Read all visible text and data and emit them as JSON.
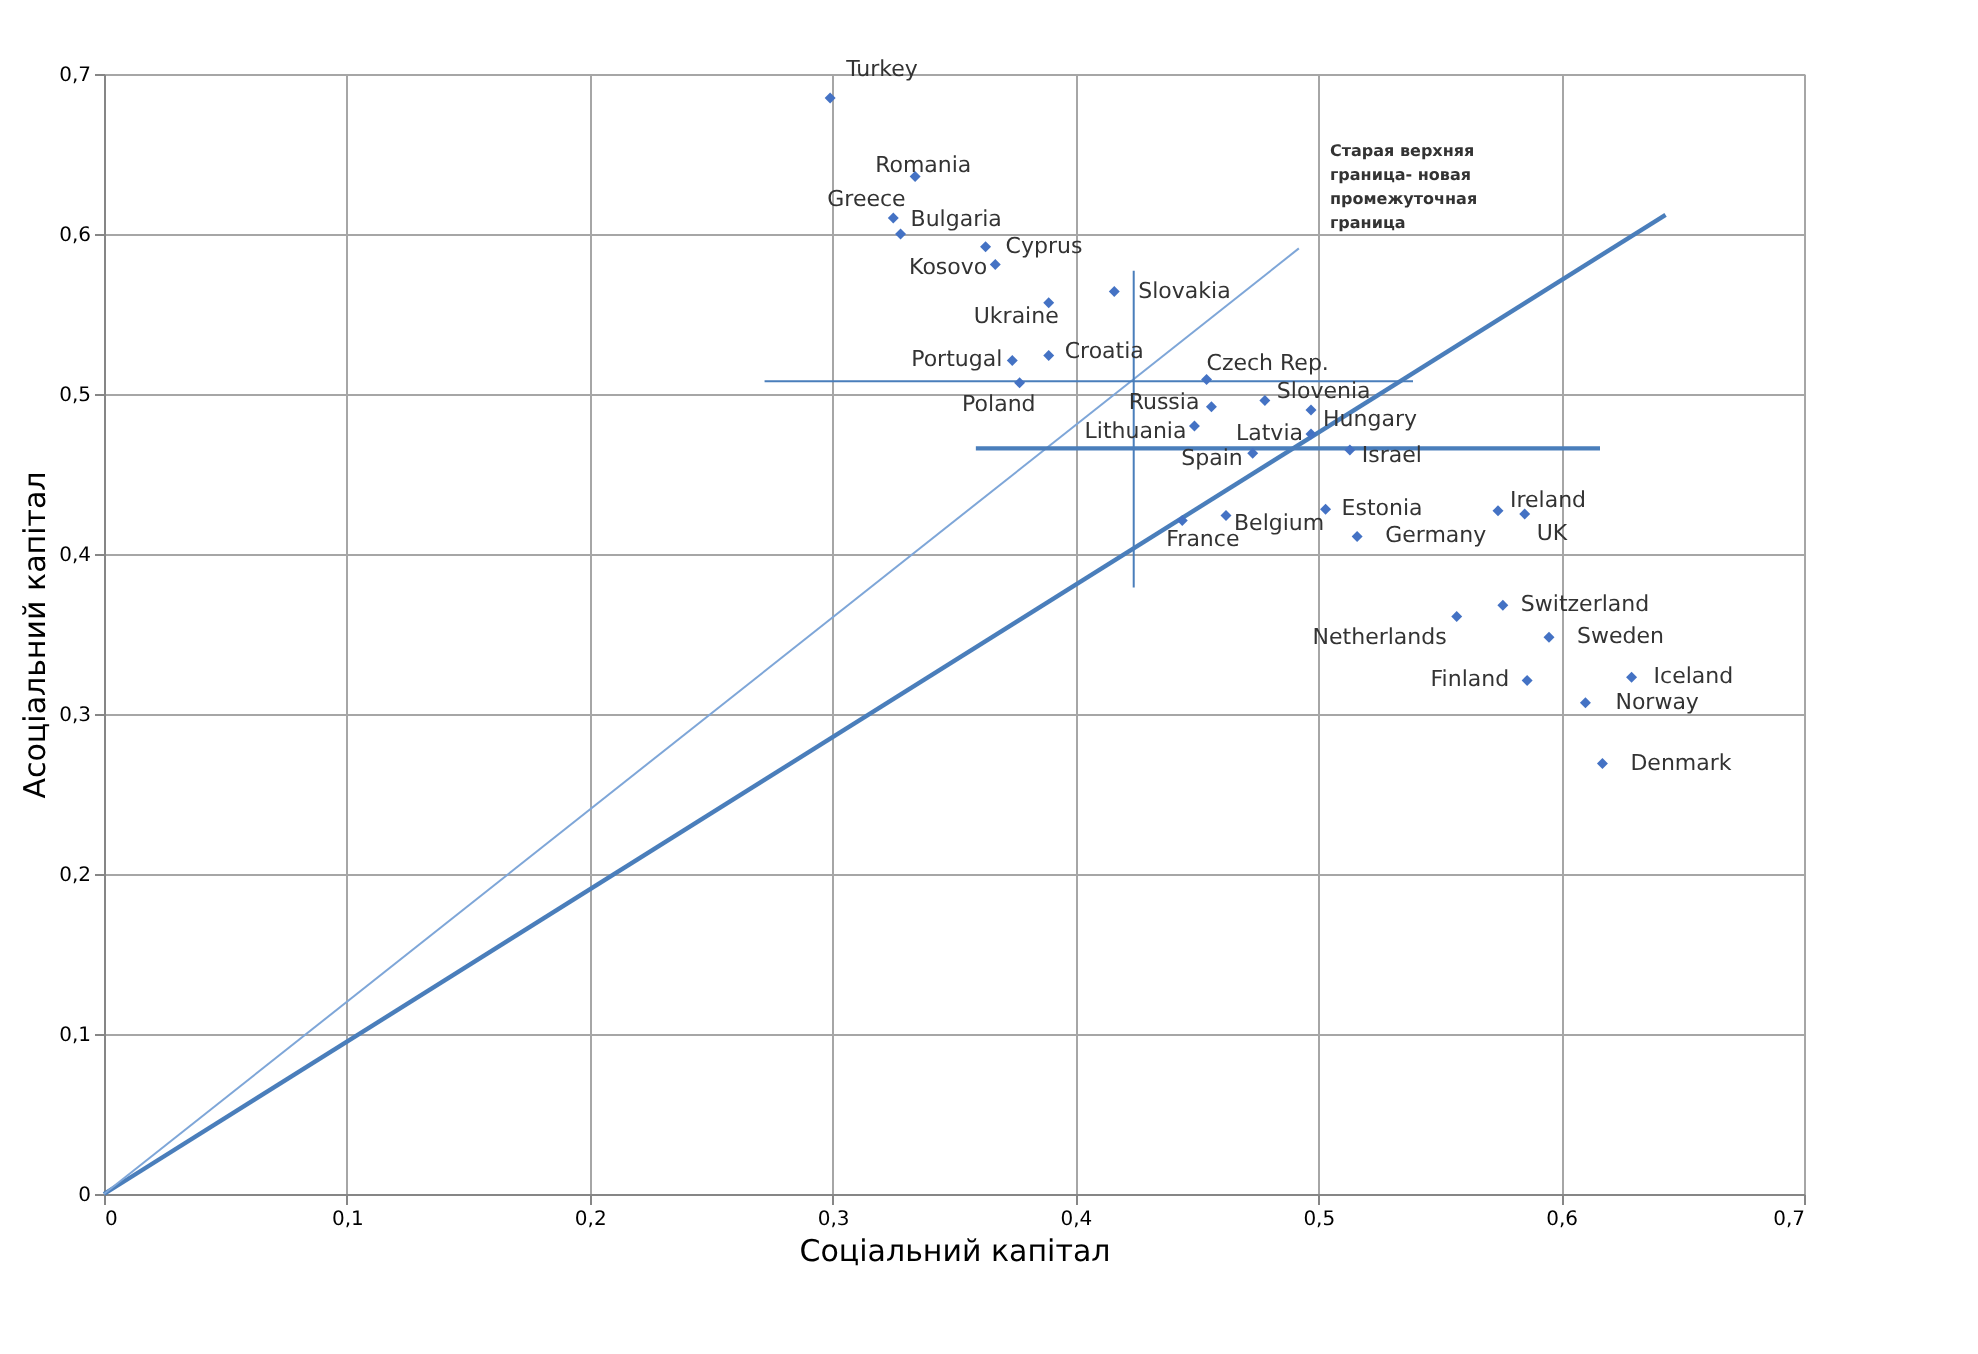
{
  "chart_data": {
    "type": "scatter",
    "xlabel": "Соціальний капітал",
    "ylabel": "Асоціальний капітал",
    "xlim": [
      0,
      0.7
    ],
    "ylim": [
      0,
      0.7
    ],
    "xticks": [
      0,
      {
        "value": 0.1,
        "label": "0,1"
      },
      {
        "value": 0.2,
        "label": "0,2"
      },
      {
        "value": 0.3,
        "label": "0,3"
      },
      {
        "value": 0.4,
        "label": "0,4"
      },
      {
        "value": 0.5,
        "label": "0,5"
      },
      {
        "value": 0.6,
        "label": "0,6"
      },
      {
        "value": 0.7,
        "label": "0,7"
      }
    ],
    "yticks": [
      0,
      {
        "value": 0.1,
        "label": "0,1"
      },
      {
        "value": 0.2,
        "label": "0,2"
      },
      {
        "value": 0.3,
        "label": "0,3"
      },
      {
        "value": 0.4,
        "label": "0,4"
      },
      {
        "value": 0.5,
        "label": "0,5"
      },
      {
        "value": 0.6,
        "label": "0,6"
      },
      {
        "value": 0.7,
        "label": "0,7"
      }
    ],
    "grid": true,
    "marker": "diamond",
    "series": [
      {
        "color": "#4472c4",
        "x": [
          0.299,
          0.334,
          0.325,
          0.328,
          0.363,
          0.367,
          0.389,
          0.416,
          0.374,
          0.389,
          0.377,
          0.454,
          0.456,
          0.478,
          0.497,
          0.449,
          0.497,
          0.473,
          0.513,
          0.574,
          0.585,
          0.503,
          0.462,
          0.444,
          0.516,
          0.576,
          0.557,
          0.595,
          0.629,
          0.586,
          0.61,
          0.617
        ],
        "values": [
          0.685,
          0.636,
          0.61,
          0.6,
          0.592,
          0.581,
          0.557,
          0.564,
          0.521,
          0.524,
          0.507,
          0.509,
          0.492,
          0.496,
          0.49,
          0.48,
          0.475,
          0.463,
          0.465,
          0.427,
          0.425,
          0.428,
          0.424,
          0.421,
          0.411,
          0.368,
          0.361,
          0.348,
          0.323,
          0.321,
          0.307,
          0.269
        ]
      },
      {
        "type": "line",
        "marker": "none",
        "color": "#4a7ebb",
        "line_style": "solid",
        "x": [
          0,
          0.643
        ],
        "values": [
          0,
          0.612
        ]
      },
      {
        "type": "line",
        "marker": "none",
        "color": "#7ea6d8",
        "line_style": "solid",
        "x": [
          0,
          0.492
        ],
        "values": [
          0,
          0.591
        ]
      },
      {
        "type": "line",
        "marker": "none",
        "color": "#4a7ebb",
        "line_style": "solid",
        "x": [
          0.272,
          0.539
        ],
        "values": [
          0.508,
          0.508
        ]
      },
      {
        "type": "line",
        "marker": "none",
        "color": "#4a7ebb",
        "line_style": "solid",
        "x": [
          0.359,
          0.616
        ],
        "values": [
          0.466,
          0.466
        ]
      },
      {
        "type": "line",
        "marker": "none",
        "color": "#4a7ebb",
        "line_style": "solid",
        "x": [
          0.424,
          0.424
        ],
        "values": [
          0.379,
          0.577
        ]
      }
    ],
    "annotations": [
      {
        "text": "Turkey",
        "x": 0.299,
        "y": 0.685
      },
      {
        "text": "Romania",
        "x": 0.334,
        "y": 0.636
      },
      {
        "text": "Greece",
        "x": 0.325,
        "y": 0.61
      },
      {
        "text": "Bulgaria",
        "x": 0.328,
        "y": 0.6
      },
      {
        "text": "Cyprus",
        "x": 0.363,
        "y": 0.592
      },
      {
        "text": "Kosovo",
        "x": 0.367,
        "y": 0.581
      },
      {
        "text": "Ukraine",
        "x": 0.389,
        "y": 0.557
      },
      {
        "text": "Slovakia",
        "x": 0.416,
        "y": 0.564
      },
      {
        "text": "Portugal",
        "x": 0.374,
        "y": 0.521
      },
      {
        "text": "Croatia",
        "x": 0.389,
        "y": 0.524
      },
      {
        "text": "Poland",
        "x": 0.377,
        "y": 0.507
      },
      {
        "text": "Czech Rep.",
        "x": 0.454,
        "y": 0.509
      },
      {
        "text": "Russia",
        "x": 0.456,
        "y": 0.492
      },
      {
        "text": "Slovenia",
        "x": 0.478,
        "y": 0.496
      },
      {
        "text": "Hungary",
        "x": 0.497,
        "y": 0.49
      },
      {
        "text": "Lithuania",
        "x": 0.449,
        "y": 0.48
      },
      {
        "text": "Latvia",
        "x": 0.497,
        "y": 0.475
      },
      {
        "text": "Spain",
        "x": 0.473,
        "y": 0.463
      },
      {
        "text": "Israel",
        "x": 0.513,
        "y": 0.465
      },
      {
        "text": "Ireland",
        "x": 0.574,
        "y": 0.427
      },
      {
        "text": "UK",
        "x": 0.585,
        "y": 0.425
      },
      {
        "text": "Estonia",
        "x": 0.503,
        "y": 0.428
      },
      {
        "text": "Belgium",
        "x": 0.462,
        "y": 0.424
      },
      {
        "text": "France",
        "x": 0.444,
        "y": 0.421
      },
      {
        "text": "Germany",
        "x": 0.516,
        "y": 0.411
      },
      {
        "text": "Switzerland",
        "x": 0.576,
        "y": 0.368
      },
      {
        "text": "Netherlands",
        "x": 0.557,
        "y": 0.361
      },
      {
        "text": "Sweden",
        "x": 0.595,
        "y": 0.348
      },
      {
        "text": "Iceland",
        "x": 0.629,
        "y": 0.323
      },
      {
        "text": "Finland",
        "x": 0.586,
        "y": 0.321
      },
      {
        "text": "Norway",
        "x": 0.61,
        "y": 0.307
      },
      {
        "text": "Denmark",
        "x": 0.617,
        "y": 0.269
      },
      "Старая верхняя\nграница- новая\nпромежуточная\nграница"
    ]
  }
}
